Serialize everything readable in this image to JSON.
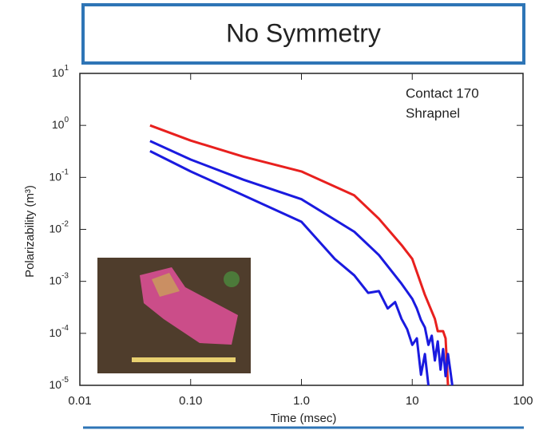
{
  "chart_data": {
    "type": "line",
    "title": "No Symmetry",
    "annotations": [
      "Contact 170",
      "Shrapnel"
    ],
    "xlabel": "Time (msec)",
    "ylabel": "Polarizability (m³)",
    "log_x": true,
    "log_y": true,
    "xlim": [
      0.01,
      100
    ],
    "xticks": [
      {
        "value": 0.01,
        "label": "0.01"
      },
      {
        "value": 0.1,
        "label": "0.10"
      },
      {
        "value": 1,
        "label": "1.0"
      },
      10,
      100
    ],
    "ylim": [
      1e-05,
      10
    ],
    "yticks": [
      {
        "value": 10,
        "label": "10",
        "exponent": "1"
      },
      {
        "value": 1,
        "label": "10",
        "exponent": "0"
      },
      {
        "value": 0.1,
        "label": "10",
        "exponent": "-1"
      },
      {
        "value": 0.01,
        "label": "10",
        "exponent": "-2"
      },
      {
        "value": 0.001,
        "label": "10",
        "exponent": "-3"
      },
      {
        "value": 0.0001,
        "label": "10",
        "exponent": "-4"
      },
      {
        "value": 1e-05,
        "label": "10",
        "exponent": "-5"
      }
    ],
    "series": [
      {
        "color": "#e8201e",
        "x": [
          0.043,
          0.1,
          0.3,
          1,
          3,
          5,
          8,
          10,
          13,
          16,
          17,
          19,
          20,
          21
        ],
        "values": [
          1.0,
          0.51,
          0.25,
          0.13,
          0.045,
          0.016,
          0.005,
          0.0027,
          0.00055,
          0.00019,
          0.00011,
          0.00011,
          8e-05,
          1e-05
        ]
      },
      {
        "color": "#1a1adf",
        "x": [
          0.043,
          0.1,
          0.3,
          1,
          3,
          5,
          8,
          10,
          11,
          12,
          13,
          14,
          15,
          16,
          17,
          18,
          19,
          20,
          21,
          22,
          23
        ],
        "values": [
          0.5,
          0.22,
          0.09,
          0.038,
          0.009,
          0.0032,
          0.0009,
          0.00046,
          0.0003,
          0.00018,
          0.00013,
          6e-05,
          9e-05,
          3e-05,
          7e-05,
          2e-05,
          5e-05,
          1.5e-05,
          4e-05,
          2e-05,
          1e-05
        ]
      },
      {
        "color": "#1a1adf",
        "x": [
          0.043,
          0.1,
          0.3,
          1,
          2,
          3,
          4,
          5,
          6,
          7,
          8,
          9,
          10,
          11,
          12,
          13,
          14
        ],
        "values": [
          0.32,
          0.13,
          0.045,
          0.014,
          0.0027,
          0.0013,
          0.0006,
          0.00065,
          0.0003,
          0.0004,
          0.00019,
          0.00012,
          6e-05,
          8e-05,
          1.6e-05,
          4e-05,
          1e-05
        ]
      }
    ]
  }
}
